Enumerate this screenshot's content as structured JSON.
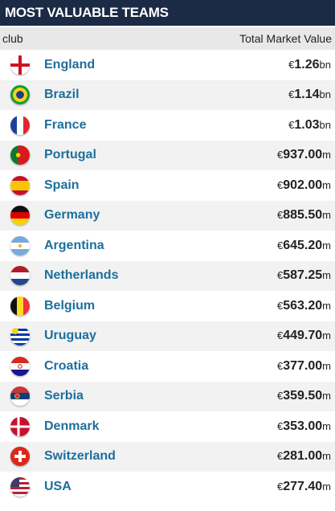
{
  "header": {
    "title": "MOST VALUABLE TEAMS"
  },
  "table": {
    "columns": [
      "club",
      "Total Market Value"
    ],
    "rows": [
      {
        "club": "England",
        "currency": "€",
        "amount": "1.26",
        "unit": "bn"
      },
      {
        "club": "Brazil",
        "currency": "€",
        "amount": "1.14",
        "unit": "bn"
      },
      {
        "club": "France",
        "currency": "€",
        "amount": "1.03",
        "unit": "bn"
      },
      {
        "club": "Portugal",
        "currency": "€",
        "amount": "937.00",
        "unit": "m"
      },
      {
        "club": "Spain",
        "currency": "€",
        "amount": "902.00",
        "unit": "m"
      },
      {
        "club": "Germany",
        "currency": "€",
        "amount": "885.50",
        "unit": "m"
      },
      {
        "club": "Argentina",
        "currency": "€",
        "amount": "645.20",
        "unit": "m"
      },
      {
        "club": "Netherlands",
        "currency": "€",
        "amount": "587.25",
        "unit": "m"
      },
      {
        "club": "Belgium",
        "currency": "€",
        "amount": "563.20",
        "unit": "m"
      },
      {
        "club": "Uruguay",
        "currency": "€",
        "amount": "449.70",
        "unit": "m"
      },
      {
        "club": "Croatia",
        "currency": "€",
        "amount": "377.00",
        "unit": "m"
      },
      {
        "club": "Serbia",
        "currency": "€",
        "amount": "359.50",
        "unit": "m"
      },
      {
        "club": "Denmark",
        "currency": "€",
        "amount": "353.00",
        "unit": "m"
      },
      {
        "club": "Switzerland",
        "currency": "€",
        "amount": "281.00",
        "unit": "m"
      },
      {
        "club": "USA",
        "currency": "€",
        "amount": "277.40",
        "unit": "m"
      }
    ]
  }
}
